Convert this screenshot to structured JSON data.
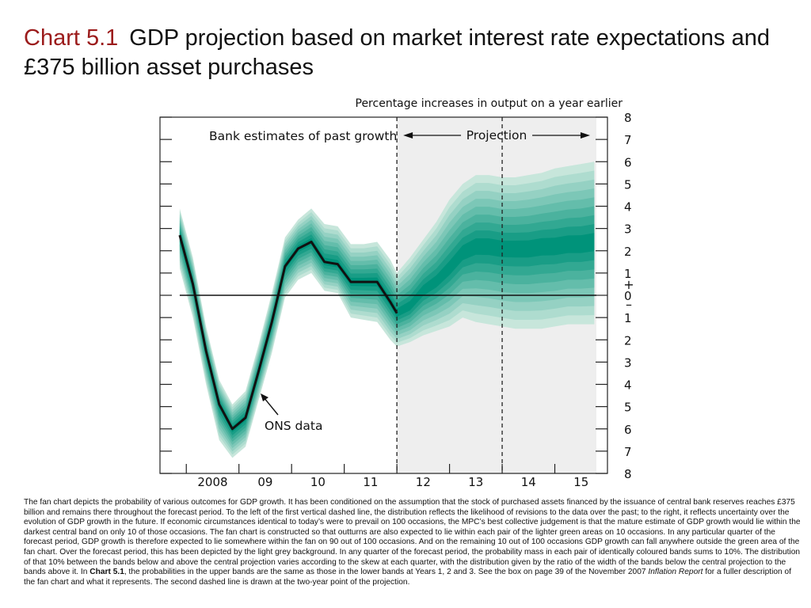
{
  "title": {
    "label": "Chart 5.1",
    "text": "GDP projection based on market interest rate expectations and £375 billion asset purchases"
  },
  "colors": {
    "title_label": "#9b1b1b",
    "fan_light": "#c7e6db",
    "fan_dark": "#00937a",
    "projection_background": "#eeeeee",
    "ons_line": "#111111"
  },
  "chart_data": {
    "type": "line",
    "ylabel": "Percentage increases in output on a year earlier",
    "xlim": [
      2007.5,
      2016.0
    ],
    "ylim": [
      -8,
      8
    ],
    "x_tick_labels": [
      {
        "x": 2008.5,
        "label": "2008"
      },
      {
        "x": 2009.5,
        "label": "09"
      },
      {
        "x": 2010.5,
        "label": "10"
      },
      {
        "x": 2011.5,
        "label": "11"
      },
      {
        "x": 2012.5,
        "label": "12"
      },
      {
        "x": 2013.5,
        "label": "13"
      },
      {
        "x": 2014.5,
        "label": "14"
      },
      {
        "x": 2015.5,
        "label": "15"
      }
    ],
    "y_tick_labels": [
      {
        "y": 8,
        "label": "8"
      },
      {
        "y": 7,
        "label": "7"
      },
      {
        "y": 6,
        "label": "6"
      },
      {
        "y": 5,
        "label": "5"
      },
      {
        "y": 4,
        "label": "4"
      },
      {
        "y": 3,
        "label": "3"
      },
      {
        "y": 2,
        "label": "2"
      },
      {
        "y": 1,
        "label": "1"
      },
      {
        "y": 0,
        "label": "0"
      },
      {
        "y": -1,
        "label": "1"
      },
      {
        "y": -2,
        "label": "2"
      },
      {
        "y": -3,
        "label": "3"
      },
      {
        "y": -4,
        "label": "4"
      },
      {
        "y": -5,
        "label": "5"
      },
      {
        "y": -6,
        "label": "6"
      },
      {
        "y": -7,
        "label": "7"
      },
      {
        "y": -8,
        "label": "8"
      }
    ],
    "sign_markers": {
      "plus": "+",
      "minus": "–"
    },
    "projection_start": 2012.0,
    "projection_end": 2016.0,
    "two_year_point": 2014.0,
    "annotations": {
      "past": "Bank estimates of past growth",
      "projection": "Projection",
      "ons": "ONS data"
    },
    "ons_series": {
      "name": "ONS data",
      "x": [
        2007.875,
        2008.125,
        2008.375,
        2008.625,
        2008.875,
        2009.125,
        2009.375,
        2009.625,
        2009.875,
        2010.125,
        2010.375,
        2010.625,
        2010.875,
        2011.125,
        2011.375,
        2011.625,
        2011.875,
        2012.0
      ],
      "y": [
        2.7,
        0.5,
        -2.5,
        -4.9,
        -6.0,
        -5.5,
        -3.4,
        -1.2,
        1.3,
        2.1,
        2.4,
        1.5,
        1.4,
        0.6,
        0.6,
        0.6,
        -0.3,
        -0.8
      ]
    },
    "fan": {
      "x": [
        2007.875,
        2008.125,
        2008.375,
        2008.625,
        2008.875,
        2009.125,
        2009.375,
        2009.625,
        2009.875,
        2010.125,
        2010.375,
        2010.625,
        2010.875,
        2011.125,
        2011.375,
        2011.625,
        2011.875,
        2012.0,
        2012.25,
        2012.5,
        2012.75,
        2013.0,
        2013.25,
        2013.5,
        2013.75,
        2014.0,
        2014.25,
        2014.5,
        2014.75,
        2015.0,
        2015.25,
        2015.5,
        2015.75
      ],
      "center": [
        2.7,
        0.5,
        -2.5,
        -4.9,
        -6.0,
        -5.5,
        -3.4,
        -1.2,
        1.3,
        2.1,
        2.4,
        1.5,
        1.4,
        0.6,
        0.6,
        0.6,
        -0.3,
        -0.8,
        -0.5,
        0.2,
        0.6,
        1.2,
        1.9,
        2.2,
        2.2,
        2.1,
        2.1,
        2.1,
        2.2,
        2.2,
        2.3,
        2.3,
        2.4
      ],
      "outer_lower": [
        1.2,
        -1.0,
        -4.0,
        -6.5,
        -7.3,
        -6.8,
        -4.7,
        -2.6,
        -0.1,
        0.7,
        1.0,
        0.2,
        0.1,
        -1.0,
        -1.1,
        -1.2,
        -2.0,
        -2.3,
        -2.1,
        -1.8,
        -1.6,
        -1.4,
        -1.0,
        -1.2,
        -1.3,
        -1.4,
        -1.5,
        -1.5,
        -1.5,
        -1.4,
        -1.3,
        -1.3,
        -1.3
      ],
      "outer_upper": [
        3.9,
        1.7,
        -1.4,
        -3.8,
        -4.9,
        -4.3,
        -2.2,
        0.1,
        2.6,
        3.4,
        3.9,
        3.2,
        3.1,
        2.3,
        2.3,
        2.4,
        1.6,
        1.0,
        1.7,
        2.5,
        3.3,
        4.3,
        5.0,
        5.4,
        5.4,
        5.3,
        5.3,
        5.4,
        5.5,
        5.7,
        5.8,
        5.9,
        6.0
      ]
    }
  },
  "note": {
    "p1": "The fan chart depicts the probability of various outcomes for GDP growth.  It has been conditioned on the assumption that the stock of purchased assets financed by the issuance of central bank reserves reaches £375 billion and remains there throughout the forecast period.  To the left of the first vertical dashed line, the distribution reflects the likelihood of revisions to the data over the past;  to the right, it reflects uncertainty over the evolution of GDP growth in the future.  If economic circumstances identical to today’s were to prevail on 100 occasions, the MPC’s best collective judgement is that the mature estimate of GDP growth would lie within the darkest central band on only 10 of those occasions.  The fan chart is constructed so that outturns are also expected to lie within each pair of the lighter green areas on 10 occasions.  In any particular quarter of the forecast period, GDP growth is therefore expected to lie somewhere within the fan on 90 out of 100 occasions.  And on the remaining 10 out of 100 occasions GDP growth can fall anywhere outside the green area of the fan chart.  Over the forecast period, this has been depicted by the light grey background.  In any quarter of the forecast period, the probability mass in each pair of identically coloured bands sums to 10%.  The distribution of that 10% between the bands below and above the central projection varies according to the skew at each quarter, with the distribution given by the ratio of the width of the bands below the central projection to the bands above it.  In ",
    "chart_ref": "Chart 5.1",
    "p2": ", the probabilities in the upper bands are the same as those in the lower bands at Years 1, 2 and 3.  See the box on page 39 of the November 2007 ",
    "report": "Inflation Report",
    "p3": " for a fuller description of the fan chart and what it represents.  The second dashed line is drawn at the two-year point of the projection."
  }
}
